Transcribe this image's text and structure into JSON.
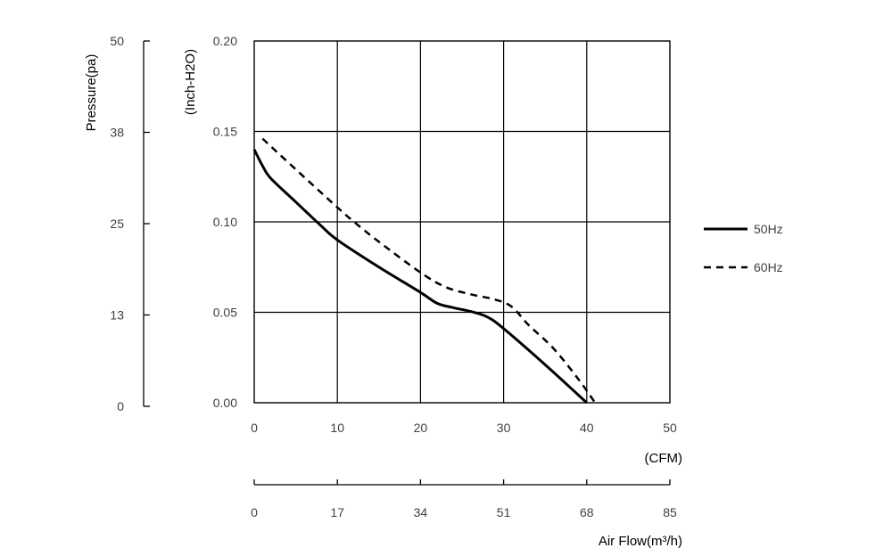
{
  "chart_data": {
    "type": "line",
    "xlabel": "(CFM)",
    "ylabel": "(Inch-H2O)",
    "xlim": [
      0,
      50
    ],
    "ylim": [
      0,
      0.2
    ],
    "grid": true,
    "x_ticks": [
      "0",
      "10",
      "20",
      "30",
      "40",
      "50"
    ],
    "y_ticks": [
      "0.00",
      "0.05",
      "0.10",
      "0.15",
      "0.20"
    ],
    "secondary_y": {
      "label": "Pressure(pa)",
      "ticks": [
        "0",
        "13",
        "25",
        "38",
        "50"
      ]
    },
    "secondary_x": {
      "label": "Air Flow(m³/h)",
      "ticks": [
        "0",
        "17",
        "34",
        "51",
        "68",
        "85"
      ]
    },
    "legend": {
      "position": "right"
    },
    "series": [
      {
        "name": "50Hz",
        "style": "solid",
        "color": "#000000",
        "points": [
          [
            0,
            0.14
          ],
          [
            1,
            0.131
          ],
          [
            2,
            0.124
          ],
          [
            5,
            0.111
          ],
          [
            8,
            0.098
          ],
          [
            10,
            0.09
          ],
          [
            15,
            0.075
          ],
          [
            20,
            0.061
          ],
          [
            22,
            0.055
          ],
          [
            24,
            0.0525
          ],
          [
            26,
            0.0505
          ],
          [
            28,
            0.0475
          ],
          [
            30,
            0.041
          ],
          [
            35,
            0.021
          ],
          [
            40,
            0.0
          ]
        ]
      },
      {
        "name": "60Hz",
        "style": "dashed",
        "color": "#000000",
        "points": [
          [
            1,
            0.146
          ],
          [
            5,
            0.129
          ],
          [
            10,
            0.108
          ],
          [
            12,
            0.1
          ],
          [
            15,
            0.089
          ],
          [
            20,
            0.072
          ],
          [
            23,
            0.064
          ],
          [
            26,
            0.06
          ],
          [
            29,
            0.057
          ],
          [
            31,
            0.053
          ],
          [
            33,
            0.043
          ],
          [
            36,
            0.03
          ],
          [
            39,
            0.013
          ],
          [
            41,
            0.0
          ]
        ]
      }
    ]
  }
}
